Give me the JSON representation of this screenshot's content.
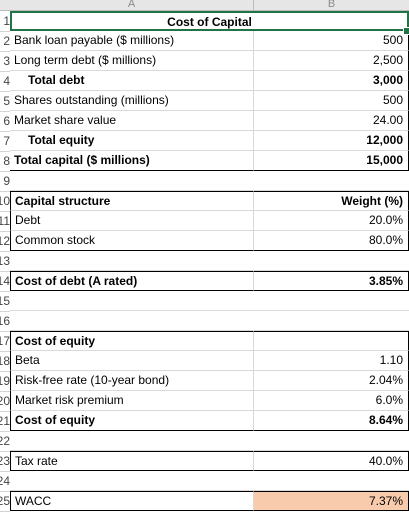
{
  "columns": [
    "A",
    "B"
  ],
  "rows": [
    {
      "n": "1",
      "a": "Cost of Capital",
      "b": ""
    },
    {
      "n": "2",
      "a": "Bank loan payable ($ millions)",
      "b": "500"
    },
    {
      "n": "3",
      "a": "Long term debt ($ millions)",
      "b": "2,500"
    },
    {
      "n": "4",
      "a": "Total debt",
      "b": "3,000"
    },
    {
      "n": "5",
      "a": "Shares outstanding (millions)",
      "b": "500"
    },
    {
      "n": "6",
      "a": "Market share value",
      "b": "24.00"
    },
    {
      "n": "7",
      "a": "Total equity",
      "b": "12,000"
    },
    {
      "n": "8",
      "a": "Total capital ($ millions)",
      "b": "15,000"
    },
    {
      "n": "9",
      "a": "",
      "b": ""
    },
    {
      "n": "10",
      "a": "Capital structure",
      "b": "Weight (%)"
    },
    {
      "n": "11",
      "a": "Debt",
      "b": "20.0%"
    },
    {
      "n": "12",
      "a": "Common stock",
      "b": "80.0%"
    },
    {
      "n": "13",
      "a": "",
      "b": ""
    },
    {
      "n": "14",
      "a": "Cost of debt (A rated)",
      "b": "3.85%"
    },
    {
      "n": "15",
      "a": "",
      "b": ""
    },
    {
      "n": "16",
      "a": "",
      "b": ""
    },
    {
      "n": "17",
      "a": "Cost of equity",
      "b": ""
    },
    {
      "n": "18",
      "a": "Beta",
      "b": "1.10"
    },
    {
      "n": "19",
      "a": "Risk-free rate (10-year bond)",
      "b": "2.04%"
    },
    {
      "n": "20",
      "a": "Market risk premium",
      "b": "6.0%"
    },
    {
      "n": "21",
      "a": "Cost of equity",
      "b": "8.64%"
    },
    {
      "n": "22",
      "a": "",
      "b": ""
    },
    {
      "n": "23",
      "a": "Tax rate",
      "b": "40.0%"
    },
    {
      "n": "24",
      "a": "",
      "b": ""
    },
    {
      "n": "25",
      "a": "WACC",
      "b": "7.37%"
    }
  ],
  "colors": {
    "wacc_highlight": "#f8cbad",
    "selection": "#217346"
  }
}
